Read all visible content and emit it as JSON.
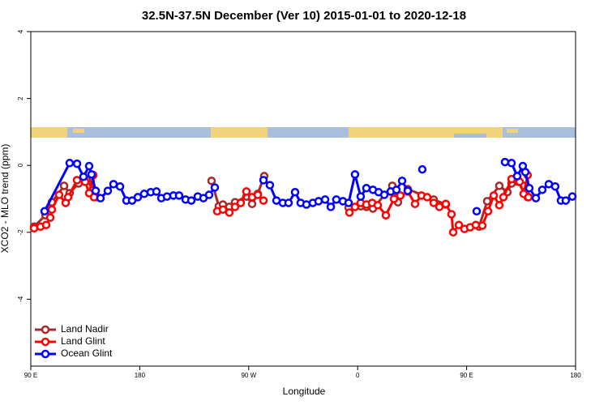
{
  "chart_data": {
    "type": "line",
    "title": "32.5N-37.5N December (Ver 10)   2015-01-01 to 2020-12-18",
    "x_label": "Longitude",
    "y_label": "XCO2 - MLO trend (ppm)",
    "xlim": [
      90,
      540
    ],
    "ylim": [
      -6,
      4
    ],
    "xticks": [
      {
        "value": 90,
        "label": "90 E"
      },
      180,
      {
        "value": 270,
        "label": "90 W"
      },
      {
        "value": 360,
        "label": "0"
      },
      {
        "value": 450,
        "label": "90 E"
      },
      {
        "value": 540,
        "label": "180"
      }
    ],
    "yticks": [
      -4,
      -2,
      0,
      2,
      4
    ],
    "legend": "bottom-left",
    "series": [
      {
        "name": "Land Nadir",
        "color": "#a52a2a",
        "x": [
          92.7,
          102.1,
          107.4,
          117.5,
          122.1,
          129.5,
          136.2,
          141.6,
          144.9,
          null,
          239.3,
          245.3,
          248.7,
          254.0,
          258.7,
          268.1,
          272.8,
          277.5,
          282.8,
          null,
          352.5,
          362.5,
          367.2,
          372.6,
          388.6,
          393.3,
          401.4,
          422.8,
          432.8,
          null,
          460.3,
          467.0,
          477.0,
          483.7,
          487.1,
          497.1,
          500.4
        ],
        "values": [
          -1.83,
          -1.49,
          -1.1,
          -0.61,
          -0.83,
          -0.54,
          -0.44,
          -0.73,
          -0.95,
          null,
          -0.46,
          -1.22,
          -1.17,
          -1.24,
          -1.1,
          -0.93,
          -1.15,
          -0.85,
          -0.32,
          null,
          -1.27,
          -1.22,
          -1.24,
          -1.29,
          -0.61,
          -1.1,
          -0.71,
          -1.02,
          -1.17,
          null,
          -1.83,
          -1.07,
          -0.61,
          -0.8,
          -0.54,
          -0.61,
          -0.95
        ]
      },
      {
        "name": "Land Glint",
        "color": "#ff0000",
        "x": [
          92.7,
          98.0,
          102.7,
          106.1,
          107.4,
          113.4,
          118.8,
          120.8,
          128.2,
          134.9,
          138.2,
          141.6,
          142.2,
          null,
          244.0,
          248.7,
          254.0,
          258.7,
          263.4,
          268.1,
          272.8,
          277.5,
          282.2,
          null,
          353.2,
          357.8,
          362.5,
          367.2,
          371.9,
          376.6,
          383.3,
          390.0,
          395.3,
          401.4,
          407.4,
          412.7,
          417.4,
          422.8,
          427.5,
          432.8,
          437.5,
          438.9,
          443.6,
          448.2,
          452.9,
          457.6,
          463.0,
          467.7,
          472.4,
          477.0,
          480.4,
          487.1,
          493.8,
          497.1,
          500.4,
          501.1
        ],
        "values": [
          -1.88,
          -1.83,
          -1.78,
          -1.56,
          -1.32,
          -0.88,
          -1.12,
          -0.95,
          -0.44,
          -0.49,
          -0.83,
          -0.29,
          -0.95,
          null,
          -1.37,
          -1.32,
          -1.41,
          -1.24,
          -1.12,
          -0.78,
          -0.95,
          -0.88,
          -1.05,
          null,
          -1.41,
          -1.24,
          -1.12,
          -1.17,
          -1.12,
          -1.19,
          -1.49,
          -1.0,
          -0.9,
          -0.78,
          -1.15,
          -0.9,
          -0.95,
          -1.12,
          -1.24,
          -1.15,
          -1.46,
          -2.0,
          -1.78,
          -1.9,
          -1.85,
          -1.78,
          -1.8,
          -1.37,
          -0.9,
          -1.19,
          -0.95,
          -0.41,
          -0.49,
          -0.85,
          -0.29,
          -0.95
        ]
      },
      {
        "name": "Ocean Glint",
        "color": "#0000ff",
        "x": [
          101.4,
          122.1,
          128.2,
          133.5,
          138.2,
          140.2,
          143.6,
          147.6,
          153.6,
          158.3,
          163.7,
          169.0,
          173.7,
          178.4,
          183.7,
          189.1,
          193.8,
          197.8,
          202.5,
          207.8,
          212.5,
          217.9,
          222.6,
          227.9,
          232.6,
          237.3,
          242.0,
          null,
          282.2,
          287.5,
          292.9,
          298.2,
          302.9,
          308.3,
          312.9,
          317.7,
          323.0,
          327.7,
          333.1,
          337.8,
          342.4,
          347.8,
          352.5,
          357.8,
          362.5,
          367.2,
          372.6,
          377.3,
          382.0,
          387.3,
          392.0,
          396.7,
          401.4,
          null,
          413.4,
          null,
          458.3,
          null,
          481.7,
          487.1,
          491.8,
          496.4,
          498.5,
          501.8,
          507.2,
          512.5,
          517.9,
          523.2,
          527.9,
          531.9,
          537.3
        ],
        "values": [
          -1.37,
          0.07,
          0.05,
          -0.34,
          -0.02,
          -0.27,
          -0.76,
          -0.98,
          -0.76,
          -0.56,
          -0.63,
          -1.05,
          -1.05,
          -0.95,
          -0.85,
          -0.8,
          -0.78,
          -0.98,
          -0.93,
          -0.9,
          -0.9,
          -1.02,
          -1.05,
          -0.93,
          -0.98,
          -0.88,
          -0.66,
          null,
          -0.44,
          -0.59,
          -1.05,
          -1.12,
          -1.12,
          -0.8,
          -1.12,
          -1.17,
          -1.12,
          -1.07,
          -1.02,
          -1.24,
          -1.02,
          -1.07,
          -1.12,
          -0.27,
          -0.93,
          -0.68,
          -0.73,
          -0.8,
          -0.88,
          -0.78,
          -0.73,
          -0.46,
          -0.76,
          null,
          -0.12,
          null,
          -1.37,
          null,
          0.1,
          0.07,
          -0.32,
          -0.02,
          -0.2,
          -0.68,
          -0.98,
          -0.73,
          -0.56,
          -0.63,
          -1.05,
          -1.05,
          -0.93
        ]
      }
    ]
  }
}
